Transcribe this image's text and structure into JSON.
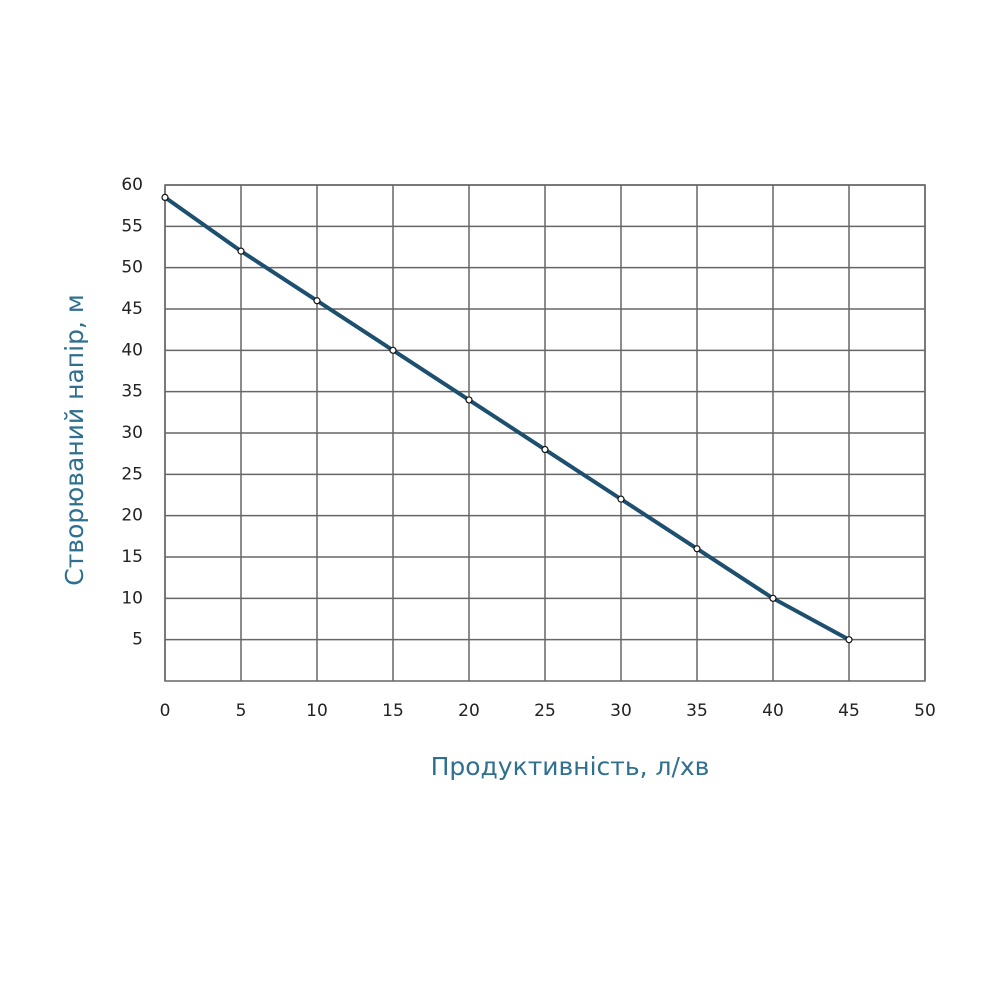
{
  "chart_data": {
    "type": "line",
    "x_label": "Продуктивність, л/хв",
    "y_label": "Створюваний напір, м",
    "x": [
      0,
      5,
      10,
      15,
      20,
      25,
      30,
      35,
      40,
      45
    ],
    "series": [
      {
        "color": "#1d4f6e",
        "values": [
          58.5,
          52,
          46,
          40,
          34,
          28,
          22,
          16,
          10,
          5
        ]
      }
    ],
    "xlim": [
      0,
      50
    ],
    "xticks": [
      0,
      5,
      10,
      15,
      20,
      25,
      30,
      35,
      40,
      45,
      50
    ],
    "ylim": [
      0,
      60
    ],
    "yticks": [
      5,
      10,
      15,
      20,
      25,
      30,
      35,
      40,
      45,
      50,
      55,
      60
    ],
    "grid": true
  }
}
